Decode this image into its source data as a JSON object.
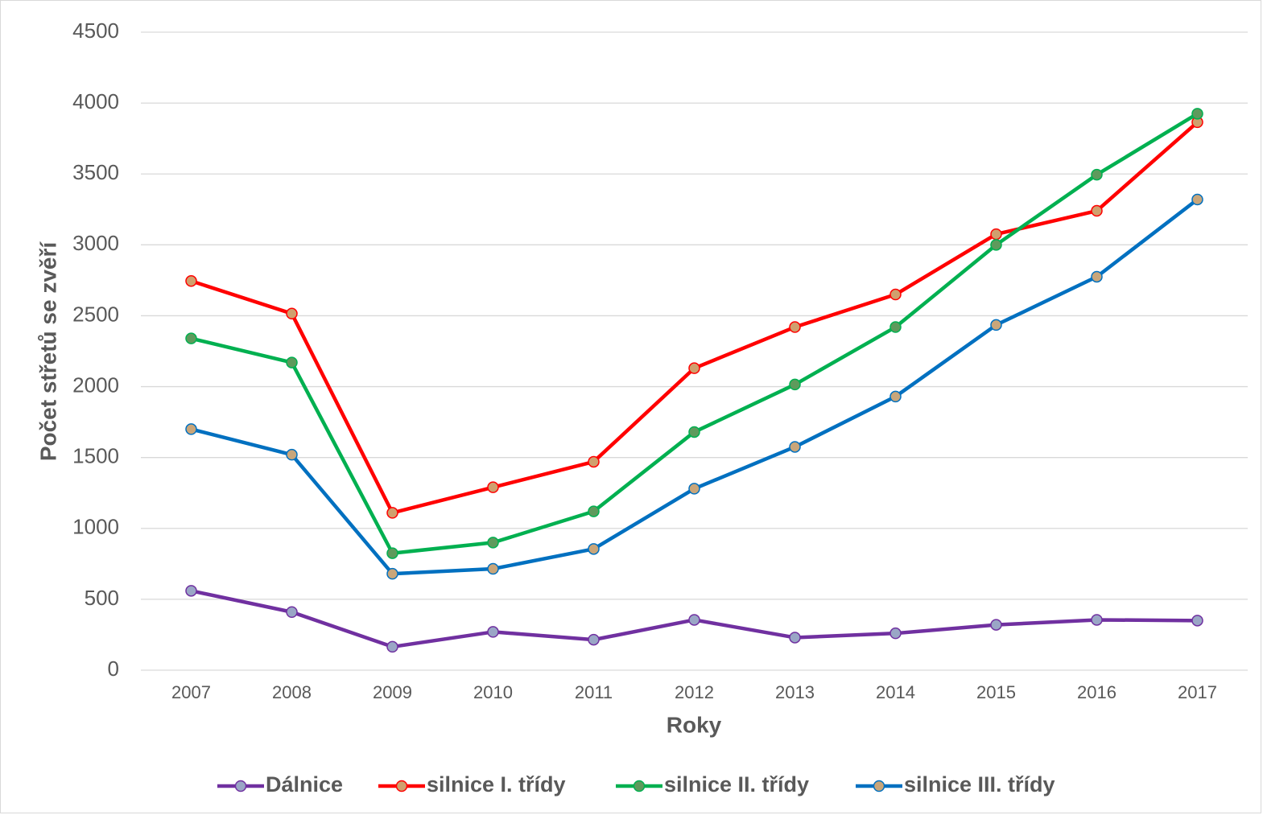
{
  "chart_data": {
    "type": "line",
    "x_label": "Roky",
    "y_label": "Počet střetů se zvěří",
    "categories": [
      "2007",
      "2008",
      "2009",
      "2010",
      "2011",
      "2012",
      "2013",
      "2014",
      "2015",
      "2016",
      "2017"
    ],
    "series": [
      {
        "name": "Dálnice",
        "color": "#7030a0",
        "marker_color": "#9aa6c6",
        "values": [
          560,
          410,
          165,
          270,
          215,
          355,
          230,
          260,
          320,
          355,
          350
        ]
      },
      {
        "name": "silnice I. třídy",
        "color": "#ff0000",
        "marker_color": "#d0a06e",
        "values": [
          2745,
          2515,
          1110,
          1290,
          1470,
          2130,
          2420,
          2650,
          3075,
          3240,
          3865
        ]
      },
      {
        "name": "silnice II. třídy",
        "color": "#00b050",
        "marker_color": "#5e9a5c",
        "values": [
          2340,
          2170,
          825,
          900,
          1120,
          1680,
          2015,
          2420,
          3000,
          3495,
          3925
        ]
      },
      {
        "name": "silnice III. třídy",
        "color": "#0070c0",
        "marker_color": "#c9a67a",
        "values": [
          1700,
          1520,
          680,
          715,
          855,
          1280,
          1575,
          1930,
          2435,
          2775,
          3320
        ]
      }
    ],
    "ylim": [
      0,
      4500
    ],
    "yticks": [
      0,
      500,
      1000,
      1500,
      2000,
      2500,
      3000,
      3500,
      4000,
      4500
    ],
    "grid": true,
    "legend": "bottom"
  }
}
